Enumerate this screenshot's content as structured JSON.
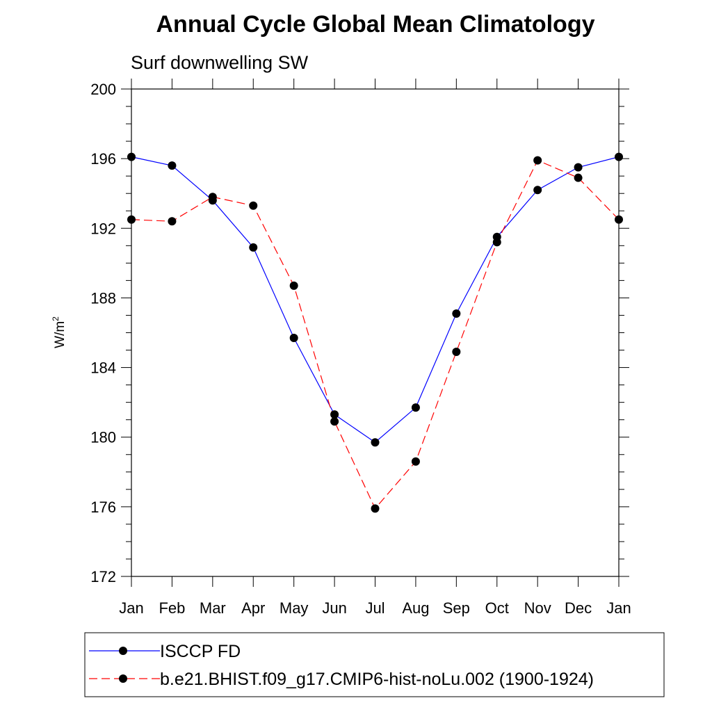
{
  "chart_data": {
    "type": "line",
    "title": "Annual Cycle Global Mean Climatology",
    "subtitle": "Surf downwelling SW",
    "ylabel": "W/m",
    "ylabel_sup": "2",
    "xlabel": "",
    "categories": [
      "Jan",
      "Feb",
      "Mar",
      "Apr",
      "May",
      "Jun",
      "Jul",
      "Aug",
      "Sep",
      "Oct",
      "Nov",
      "Dec",
      "Jan"
    ],
    "ylim": [
      172,
      200
    ],
    "yticks": [
      "172",
      "176",
      "180",
      "184",
      "188",
      "192",
      "196",
      "200"
    ],
    "grid": false,
    "legend_position": "bottom",
    "series": [
      {
        "name": "ISCCP FD",
        "color": "#0000ff",
        "line_style": "solid",
        "marker": "filled-circle",
        "values": [
          196.1,
          195.6,
          193.6,
          190.9,
          185.7,
          181.3,
          179.7,
          181.7,
          187.1,
          191.5,
          194.2,
          195.5,
          196.1
        ]
      },
      {
        "name": "b.e21.BHIST.f09_g17.CMIP6-hist-noLu.002 (1900-1924)",
        "color": "#ff0000",
        "line_style": "dashed",
        "marker": "filled-circle",
        "values": [
          192.5,
          192.4,
          193.8,
          193.3,
          188.7,
          180.9,
          175.9,
          178.6,
          184.9,
          191.2,
          195.9,
          194.9,
          192.5
        ]
      }
    ]
  }
}
